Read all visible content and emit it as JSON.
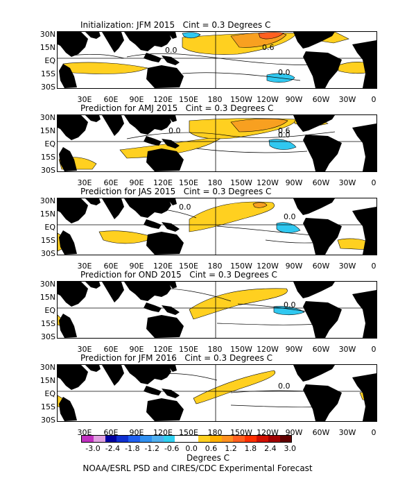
{
  "panels": [
    {
      "title": "Initialization: JFM 2015   Cint = 0.3 Degrees C",
      "labels": [
        "0.0",
        "0.6",
        "0.0"
      ]
    },
    {
      "title": "Prediction for AMJ 2015   Cint = 0.3 Degrees C",
      "labels": [
        "0.0",
        "0.6",
        "0.0"
      ]
    },
    {
      "title": "Prediction for JAS 2015   Cint = 0.3 Degrees C",
      "labels": [
        "0.0",
        "0.0"
      ]
    },
    {
      "title": "Prediction for OND 2015   Cint = 0.3 Degrees C",
      "labels": [
        "0.0"
      ]
    },
    {
      "title": "Prediction for JFM 2016   Cint = 0.3 Degrees C",
      "labels": [
        "0.0"
      ]
    }
  ],
  "lat_labels": [
    "30N",
    "15N",
    "EQ",
    "15S",
    "30S"
  ],
  "lon_labels": [
    "30E",
    "60E",
    "90E",
    "120E",
    "150E",
    "180",
    "150W",
    "120W",
    "90W",
    "60W",
    "30W",
    "0"
  ],
  "colorbar": {
    "colors": [
      "#c030c0",
      "#e0a0e0",
      "#0000a0",
      "#1030d0",
      "#2060f0",
      "#3090f0",
      "#50b0f0",
      "#30d0f0",
      "#ffffff",
      "#ffffff",
      "#ffd020",
      "#ffb000",
      "#ff9020",
      "#ff6020",
      "#ff3000",
      "#d01000",
      "#a00000",
      "#600000"
    ],
    "ticks": [
      "-3.0",
      "-2.4",
      "-1.8",
      "-1.2",
      "-0.6",
      "0.0",
      "0.6",
      "1.2",
      "1.8",
      "2.4",
      "3.0"
    ]
  },
  "units": "Degrees C",
  "credit": "NOAA/ESRL PSD and CIRES/CDC Experimental Forecast",
  "colors": {
    "land": "#000000",
    "warm1": "#ffd020",
    "warm2": "#f8a020",
    "warm3": "#ff6020",
    "cool1": "#30c8f0"
  }
}
